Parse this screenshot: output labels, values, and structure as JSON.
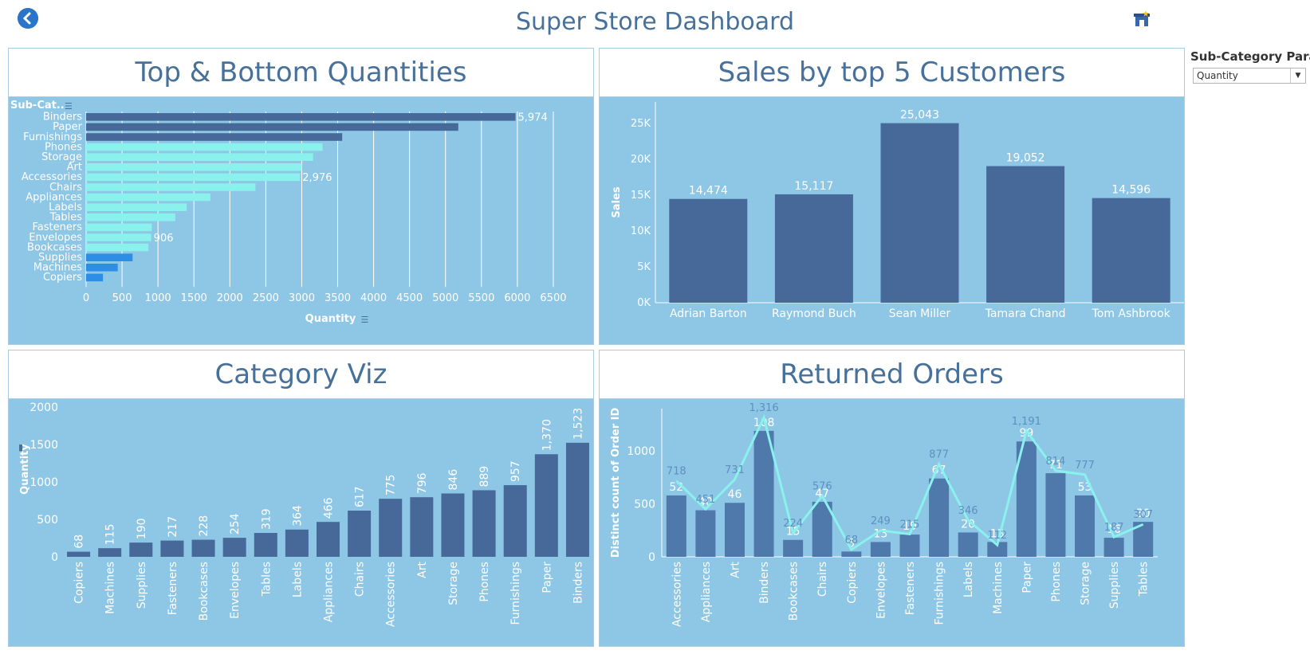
{
  "header": {
    "title": "Super Store Dashboard",
    "back_icon": "back-arrow-icon",
    "store_icon": "store-icon"
  },
  "parameter": {
    "label": "Sub-Category Para..",
    "value": "Quantity"
  },
  "panels": {
    "top_bottom": "Top & Bottom Quantities",
    "customers": "Sales by top 5 Customers",
    "category": "Category Viz",
    "returned": "Returned Orders"
  },
  "colors": {
    "panel_bg": "#8ec6e6",
    "dark_bar": "#46699a",
    "mid_bar": "#4f79ab",
    "light_bar": "#8af1ec",
    "blue_bar": "#2d8ee6",
    "line": "#8af1ec",
    "title": "#47719a"
  },
  "chart_data": [
    {
      "type": "bar",
      "orientation": "horizontal",
      "title": "Top & Bottom Quantities",
      "ylabel": "Sub-Cat..",
      "xlabel": "Quantity",
      "xlim": [
        0,
        6800
      ],
      "xticks": [
        "0",
        "500",
        "1000",
        "1500",
        "2000",
        "2500",
        "3000",
        "3500",
        "4000",
        "4500",
        "5000",
        "5500",
        "6000",
        "6500"
      ],
      "categories": [
        "Binders",
        "Paper",
        "Furnishings",
        "Phones",
        "Storage",
        "Art",
        "Accessories",
        "Chairs",
        "Appliances",
        "Labels",
        "Tables",
        "Fasteners",
        "Envelopes",
        "Bookcases",
        "Supplies",
        "Machines",
        "Copiers"
      ],
      "values": [
        5974,
        5178,
        3563,
        3289,
        3158,
        3000,
        2976,
        2356,
        1729,
        1400,
        1241,
        914,
        906,
        868,
        647,
        440,
        234
      ],
      "groups": [
        "top",
        "top",
        "top",
        "mid",
        "mid",
        "mid",
        "mid",
        "mid",
        "mid",
        "mid",
        "mid",
        "mid",
        "mid",
        "mid",
        "bottom",
        "bottom",
        "bottom"
      ],
      "labels": {
        "Binders": "5,974",
        "Accessories": "2,976",
        "Envelopes": "906"
      }
    },
    {
      "type": "bar",
      "title": "Sales by top 5 Customers",
      "ylabel": "Sales",
      "ylim": [
        0,
        28000
      ],
      "yticks": [
        "0K",
        "5K",
        "10K",
        "15K",
        "20K",
        "25K"
      ],
      "categories": [
        "Adrian Barton",
        "Raymond Buch",
        "Sean Miller",
        "Tamara Chand",
        "Tom Ashbrook"
      ],
      "values": [
        14474,
        15117,
        25043,
        19052,
        14596
      ],
      "value_labels": [
        "14,474",
        "15,117",
        "25,043",
        "19,052",
        "14,596"
      ]
    },
    {
      "type": "bar",
      "title": "Category Viz",
      "ylabel": "Quantity",
      "ylim": [
        0,
        2000
      ],
      "yticks": [
        "0",
        "500",
        "1000",
        "1500",
        "2000"
      ],
      "categories": [
        "Copiers",
        "Machines",
        "Supplies",
        "Fasteners",
        "Bookcases",
        "Envelopes",
        "Tables",
        "Labels",
        "Appliances",
        "Chairs",
        "Accessories",
        "Art",
        "Storage",
        "Phones",
        "Furnishings",
        "Paper",
        "Binders"
      ],
      "values": [
        68,
        115,
        190,
        217,
        228,
        254,
        319,
        364,
        466,
        617,
        775,
        796,
        846,
        889,
        957,
        1370,
        1523
      ],
      "value_labels": [
        "68",
        "115",
        "190",
        "217",
        "228",
        "254",
        "319",
        "364",
        "466",
        "617",
        "775",
        "796",
        "846",
        "889",
        "957",
        "1,370",
        "1,523"
      ]
    },
    {
      "type": "bar+line",
      "title": "Returned Orders",
      "ylabel": "Distinct count of Order ID",
      "ylim": [
        0,
        1400
      ],
      "yticks": [
        "0",
        "500",
        "1000"
      ],
      "categories": [
        "Accessories",
        "Appliances",
        "Art",
        "Binders",
        "Bookcases",
        "Chairs",
        "Copiers",
        "Envelopes",
        "Fasteners",
        "Furnishings",
        "Labels",
        "Machines",
        "Paper",
        "Phones",
        "Storage",
        "Supplies",
        "Tables"
      ],
      "bar_values": [
        580,
        440,
        510,
        1190,
        160,
        520,
        50,
        140,
        210,
        740,
        230,
        140,
        1090,
        790,
        580,
        180,
        330
      ],
      "line_values": [
        718,
        451,
        731,
        1316,
        224,
        576,
        68,
        249,
        215,
        877,
        346,
        112,
        1191,
        814,
        777,
        187,
        307
      ],
      "bar_labels": [
        "52",
        "40",
        "46",
        "108",
        "15",
        "47",
        "5",
        "13",
        "19",
        "67",
        "20",
        "13",
        "99",
        "71",
        "53",
        "16",
        "30"
      ],
      "line_labels": [
        "718",
        "451",
        "731",
        "1,316",
        "224",
        "576",
        "68",
        "249",
        "215",
        "877",
        "346",
        "112",
        "1,191",
        "814",
        "777",
        "187",
        "307"
      ]
    }
  ]
}
